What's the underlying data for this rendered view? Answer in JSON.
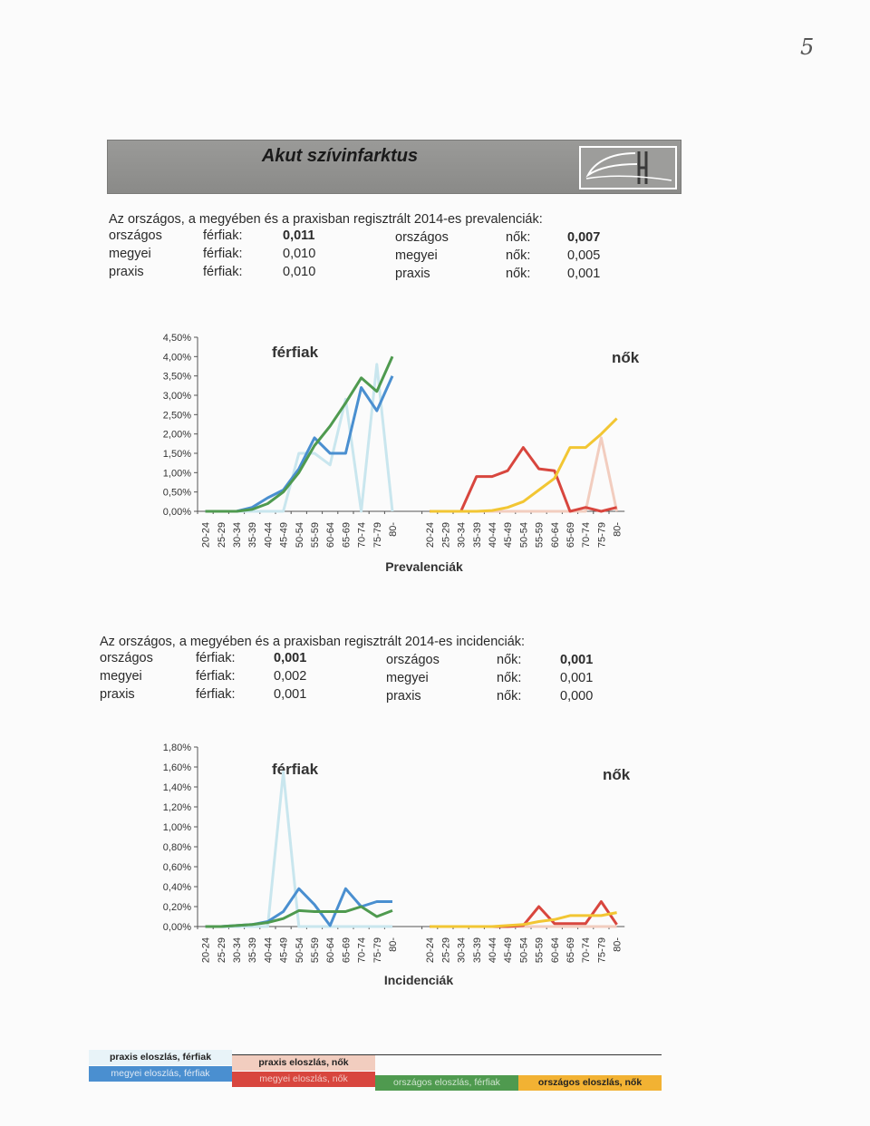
{
  "page_number": "5",
  "banner": {
    "title": "Akut szívinfarktus"
  },
  "colors": {
    "praxis_ferfiak": "#e8f3f8",
    "megyei_ferfiak": "#4a8fd0",
    "orszagos_ferfiak": "#4f9a4f",
    "praxis_nok": "#f2cdbf",
    "megyei_nok": "#d8463e",
    "orszagos_nok": "#f2c633",
    "ferfiak_praxis_line": "#c9e6ee"
  },
  "prevalence": {
    "intro": "Az országos, a megyében és a praxisban regisztrált 2014-es prevalenciák:",
    "ferfiak": [
      {
        "level": "országos",
        "label": "férfiak:",
        "value": "0,011",
        "bold": true
      },
      {
        "level": "megyei",
        "label": "férfiak:",
        "value": "0,010",
        "bold": false
      },
      {
        "level": "praxis",
        "label": "férfiak:",
        "value": "0,010",
        "bold": false
      }
    ],
    "nok": [
      {
        "level": "országos",
        "label": "nők:",
        "value": "0,007",
        "bold": true
      },
      {
        "level": "megyei",
        "label": "nők:",
        "value": "0,005",
        "bold": false
      },
      {
        "level": "praxis",
        "label": "nők:",
        "value": "0,001",
        "bold": false
      }
    ]
  },
  "incidence": {
    "intro": "Az országos, a megyében és a praxisban regisztrált 2014-es incidenciák:",
    "ferfiak": [
      {
        "level": "országos",
        "label": "férfiak:",
        "value": "0,001",
        "bold": true
      },
      {
        "level": "megyei",
        "label": "férfiak:",
        "value": "0,002",
        "bold": false
      },
      {
        "level": "praxis",
        "label": "férfiak:",
        "value": "0,001",
        "bold": false
      }
    ],
    "nok": [
      {
        "level": "országos",
        "label": "nők:",
        "value": "0,001",
        "bold": true
      },
      {
        "level": "megyei",
        "label": "nők:",
        "value": "0,001",
        "bold": false
      },
      {
        "level": "praxis",
        "label": "nők:",
        "value": "0,000",
        "bold": false
      }
    ]
  },
  "legend": {
    "praxis_ferfiak": "praxis eloszlás, férfiak",
    "praxis_nok": "praxis eloszlás, nők",
    "megyei_ferfiak": "megyei eloszlás, férfiak",
    "megyei_nok": "megyei eloszlás, nők",
    "orszagos_ferfiak": "országos eloszlás, férfiak",
    "orszagos_nok": "országos eloszlás, nők"
  },
  "chart_data": [
    {
      "type": "line",
      "title": "Prevalenciák",
      "panel_labels": [
        "férfiak",
        "nők"
      ],
      "categories": [
        "20-24",
        "25-29",
        "30-34",
        "35-39",
        "40-44",
        "45-49",
        "50-54",
        "55-59",
        "60-64",
        "65-69",
        "70-74",
        "75-79",
        "80-"
      ],
      "ylim": [
        0,
        4.5
      ],
      "y_ticks": [
        "0,00%",
        "0,50%",
        "1,00%",
        "1,50%",
        "2,00%",
        "2,50%",
        "3,00%",
        "3,50%",
        "4,00%",
        "4,50%"
      ],
      "series": [
        {
          "name": "praxis eloszlás, férfiak",
          "panel": "férfiak",
          "color_key": "ferfiak_praxis_line",
          "values": [
            0,
            0,
            0,
            0,
            0,
            0,
            1.5,
            1.5,
            1.2,
            2.9,
            0,
            3.8,
            0
          ]
        },
        {
          "name": "megyei eloszlás, férfiak",
          "panel": "férfiak",
          "color_key": "megyei_ferfiak",
          "values": [
            0,
            0,
            0,
            0.1,
            0.35,
            0.55,
            1.1,
            1.9,
            1.5,
            1.5,
            3.2,
            2.6,
            3.5
          ]
        },
        {
          "name": "országos eloszlás, férfiak",
          "panel": "férfiak",
          "color_key": "orszagos_ferfiak",
          "values": [
            0,
            0,
            0,
            0.05,
            0.2,
            0.5,
            1.0,
            1.7,
            2.2,
            2.8,
            3.45,
            3.1,
            4.0
          ]
        },
        {
          "name": "praxis eloszlás, nők",
          "panel": "nők",
          "color_key": "praxis_nok",
          "values": [
            0,
            0,
            0,
            0,
            0,
            0,
            0,
            0,
            0,
            0,
            0,
            1.9,
            0
          ]
        },
        {
          "name": "megyei eloszlás, nők",
          "panel": "nők",
          "color_key": "megyei_nok",
          "values": [
            0,
            0,
            0,
            0.9,
            0.9,
            1.05,
            1.65,
            1.1,
            1.05,
            0,
            0.1,
            0,
            0.1
          ]
        },
        {
          "name": "országos eloszlás, nők",
          "panel": "nők",
          "color_key": "orszagos_nok",
          "values": [
            0,
            0,
            0,
            0,
            0.02,
            0.1,
            0.25,
            0.55,
            0.85,
            1.65,
            1.65,
            2.0,
            2.4
          ]
        }
      ]
    },
    {
      "type": "line",
      "title": "Incidenciák",
      "panel_labels": [
        "férfiak",
        "nők"
      ],
      "categories": [
        "20-24",
        "25-29",
        "30-34",
        "35-39",
        "40-44",
        "45-49",
        "50-54",
        "55-59",
        "60-64",
        "65-69",
        "70-74",
        "75-79",
        "80-"
      ],
      "ylim": [
        0,
        1.8
      ],
      "y_ticks": [
        "0,00%",
        "0,20%",
        "0,40%",
        "0,60%",
        "0,80%",
        "1,00%",
        "1,20%",
        "1,40%",
        "1,60%",
        "1,80%"
      ],
      "series": [
        {
          "name": "praxis eloszlás, férfiak",
          "panel": "férfiak",
          "color_key": "ferfiak_praxis_line",
          "values": [
            0,
            0,
            0,
            0,
            0,
            1.55,
            0,
            0,
            0,
            0,
            0,
            0,
            0
          ]
        },
        {
          "name": "megyei eloszlás, férfiak",
          "panel": "férfiak",
          "color_key": "megyei_ferfiak",
          "values": [
            0,
            0,
            0.01,
            0.02,
            0.05,
            0.15,
            0.38,
            0.22,
            0.01,
            0.38,
            0.2,
            0.25,
            0.25
          ]
        },
        {
          "name": "országos eloszlás, férfiak",
          "panel": "férfiak",
          "color_key": "orszagos_ferfiak",
          "values": [
            0,
            0,
            0.01,
            0.02,
            0.04,
            0.08,
            0.16,
            0.15,
            0.15,
            0.15,
            0.2,
            0.1,
            0.16
          ]
        },
        {
          "name": "praxis eloszlás, nők",
          "panel": "nők",
          "color_key": "praxis_nok",
          "values": [
            0,
            0,
            0,
            0,
            0,
            0,
            0,
            0,
            0,
            0,
            0,
            0,
            0
          ]
        },
        {
          "name": "megyei eloszlás, nők",
          "panel": "nők",
          "color_key": "megyei_nok",
          "values": [
            0,
            0,
            0,
            0,
            0,
            0,
            0.01,
            0.2,
            0.03,
            0.03,
            0.03,
            0.25,
            0.02
          ]
        },
        {
          "name": "országos eloszlás, nők",
          "panel": "nők",
          "color_key": "orszagos_nok",
          "values": [
            0,
            0,
            0,
            0,
            0,
            0.01,
            0.02,
            0.05,
            0.07,
            0.11,
            0.11,
            0.11,
            0.14
          ]
        }
      ]
    }
  ]
}
